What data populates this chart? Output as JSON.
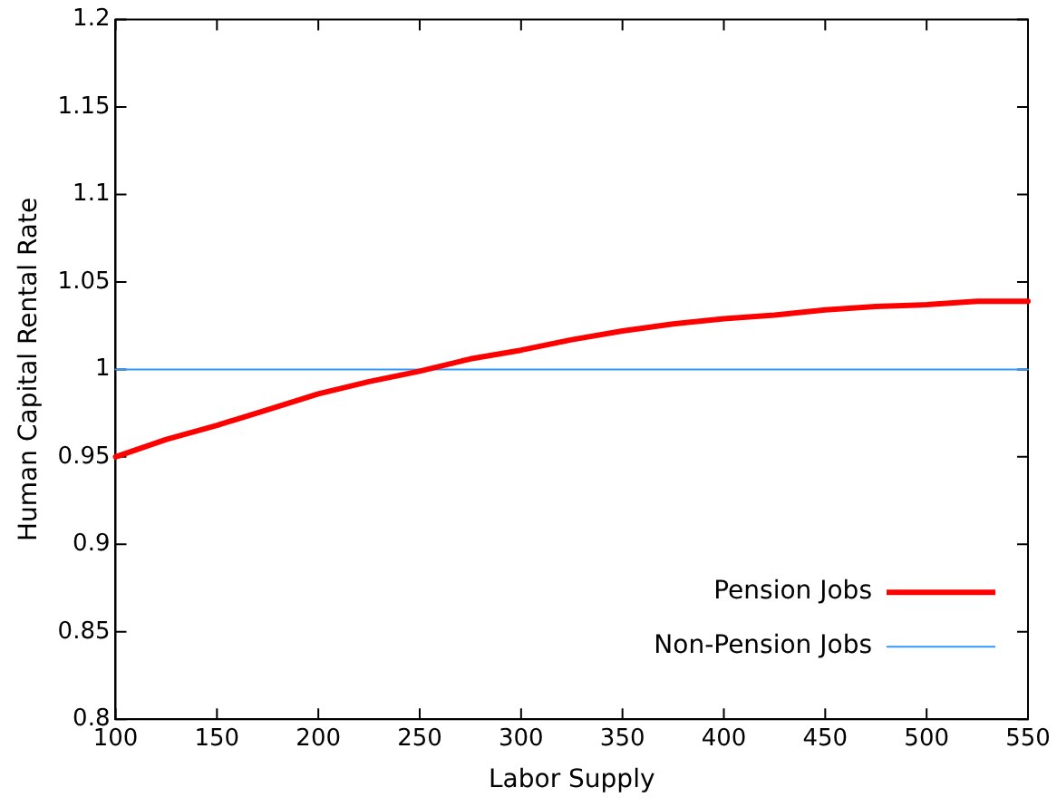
{
  "chart_data": {
    "type": "line",
    "xlabel": "Labor Supply",
    "ylabel": "Human Capital Rental Rate",
    "x": [
      100,
      125,
      150,
      175,
      200,
      225,
      250,
      275,
      300,
      325,
      350,
      375,
      400,
      425,
      450,
      475,
      500,
      525,
      550
    ],
    "series": [
      {
        "name": "Pension Jobs",
        "color": "#ff0000",
        "values": [
          0.95,
          0.96,
          0.968,
          0.977,
          0.986,
          0.993,
          0.999,
          1.006,
          1.011,
          1.017,
          1.022,
          1.026,
          1.029,
          1.031,
          1.034,
          1.036,
          1.037,
          1.039,
          1.039
        ]
      },
      {
        "name": "Non-Pension Jobs",
        "color": "#3399ff",
        "x": [
          100,
          550
        ],
        "values": [
          1,
          1
        ]
      }
    ],
    "xlim": [
      100,
      550
    ],
    "xticks": [
      100,
      150,
      200,
      250,
      300,
      350,
      400,
      450,
      500,
      550
    ],
    "ylim": [
      0.8,
      1.2
    ],
    "yticks": [
      0.8,
      0.85,
      0.9,
      0.95,
      1,
      1.05,
      1.1,
      1.15,
      1.2
    ],
    "grid": false,
    "legend": "bottom right",
    "marker": "none",
    "line_style": "solid"
  }
}
